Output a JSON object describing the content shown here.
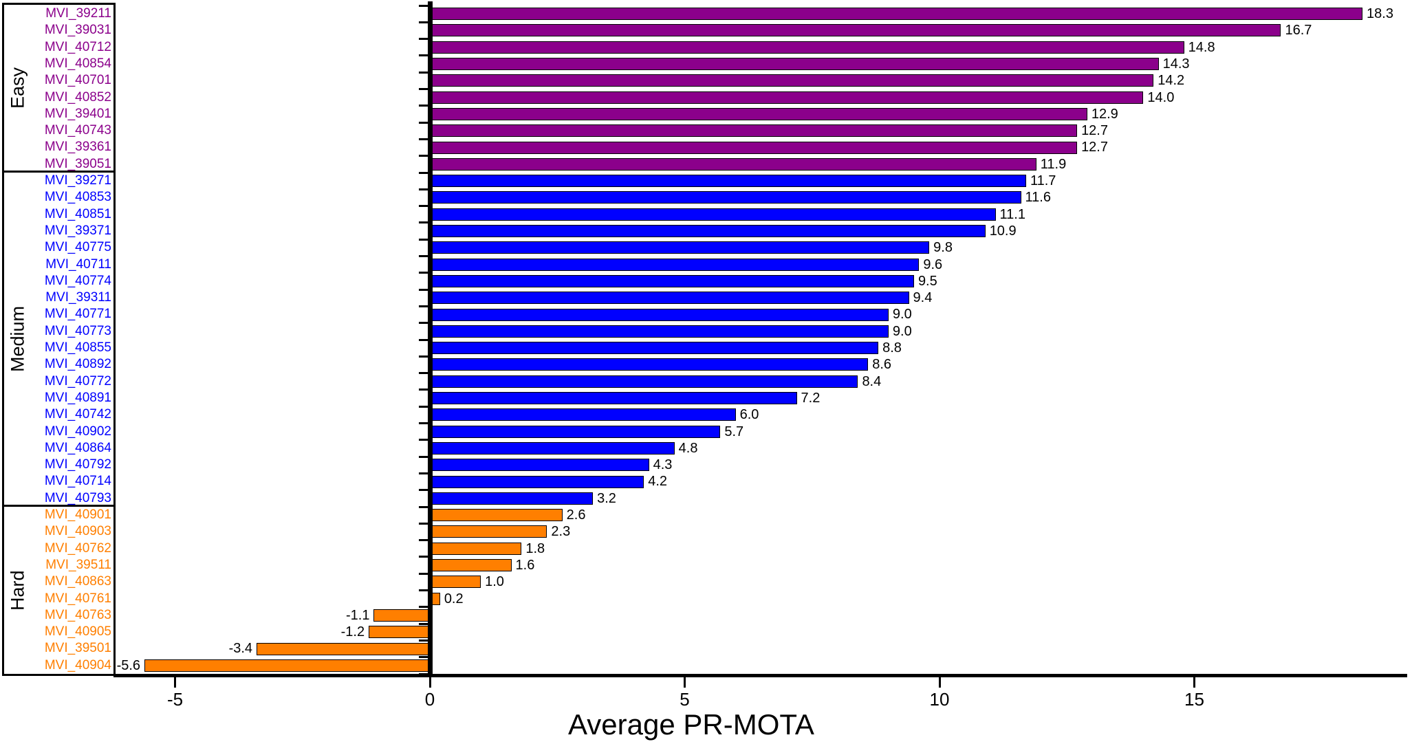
{
  "figure": {
    "background": "#ffffff"
  },
  "chart_data": {
    "type": "bar",
    "orientation": "horizontal",
    "title": "",
    "xlabel": "Average PR-MOTA",
    "ylabel": "",
    "xlim": [
      -6.2,
      19.2
    ],
    "x_ticks": [
      "-5",
      "0",
      "5",
      "10",
      "15"
    ],
    "x_tick_values": [
      -5,
      0,
      5,
      10,
      15
    ],
    "grid": false,
    "legend": false,
    "bar_edge_color": "#000000",
    "axis_color": "#000000",
    "groups": [
      {
        "label": "Easy",
        "color": "#8B008B",
        "items": [
          {
            "name": "MVI_39211",
            "value": 18.3,
            "label": "18.3"
          },
          {
            "name": "MVI_39031",
            "value": 16.7,
            "label": "16.7"
          },
          {
            "name": "MVI_40712",
            "value": 14.8,
            "label": "14.8"
          },
          {
            "name": "MVI_40854",
            "value": 14.3,
            "label": "14.3"
          },
          {
            "name": "MVI_40701",
            "value": 14.2,
            "label": "14.2"
          },
          {
            "name": "MVI_40852",
            "value": 14.0,
            "label": "14.0"
          },
          {
            "name": "MVI_39401",
            "value": 12.9,
            "label": "12.9"
          },
          {
            "name": "MVI_40743",
            "value": 12.7,
            "label": "12.7"
          },
          {
            "name": "MVI_39361",
            "value": 12.7,
            "label": "12.7"
          },
          {
            "name": "MVI_39051",
            "value": 11.9,
            "label": "11.9"
          }
        ]
      },
      {
        "label": "Medium",
        "color": "#0000FF",
        "items": [
          {
            "name": "MVI_39271",
            "value": 11.7,
            "label": "11.7"
          },
          {
            "name": "MVI_40853",
            "value": 11.6,
            "label": "11.6"
          },
          {
            "name": "MVI_40851",
            "value": 11.1,
            "label": "11.1"
          },
          {
            "name": "MVI_39371",
            "value": 10.9,
            "label": "10.9"
          },
          {
            "name": "MVI_40775",
            "value": 9.8,
            "label": "9.8"
          },
          {
            "name": "MVI_40711",
            "value": 9.6,
            "label": "9.6"
          },
          {
            "name": "MVI_40774",
            "value": 9.5,
            "label": "9.5"
          },
          {
            "name": "MVI_39311",
            "value": 9.4,
            "label": "9.4"
          },
          {
            "name": "MVI_40771",
            "value": 9.0,
            "label": "9.0"
          },
          {
            "name": "MVI_40773",
            "value": 9.0,
            "label": "9.0"
          },
          {
            "name": "MVI_40855",
            "value": 8.8,
            "label": "8.8"
          },
          {
            "name": "MVI_40892",
            "value": 8.6,
            "label": "8.6"
          },
          {
            "name": "MVI_40772",
            "value": 8.4,
            "label": "8.4"
          },
          {
            "name": "MVI_40891",
            "value": 7.2,
            "label": "7.2"
          },
          {
            "name": "MVI_40742",
            "value": 6.0,
            "label": "6.0"
          },
          {
            "name": "MVI_40902",
            "value": 5.7,
            "label": "5.7"
          },
          {
            "name": "MVI_40864",
            "value": 4.8,
            "label": "4.8"
          },
          {
            "name": "MVI_40792",
            "value": 4.3,
            "label": "4.3"
          },
          {
            "name": "MVI_40714",
            "value": 4.2,
            "label": "4.2"
          },
          {
            "name": "MVI_40793",
            "value": 3.2,
            "label": "3.2"
          }
        ]
      },
      {
        "label": "Hard",
        "color": "#FF7F00",
        "items": [
          {
            "name": "MVI_40901",
            "value": 2.6,
            "label": "2.6"
          },
          {
            "name": "MVI_40903",
            "value": 2.3,
            "label": "2.3"
          },
          {
            "name": "MVI_40762",
            "value": 1.8,
            "label": "1.8"
          },
          {
            "name": "MVI_39511",
            "value": 1.6,
            "label": "1.6"
          },
          {
            "name": "MVI_40863",
            "value": 1.0,
            "label": "1.0"
          },
          {
            "name": "MVI_40761",
            "value": 0.2,
            "label": "0.2"
          },
          {
            "name": "MVI_40763",
            "value": -1.1,
            "label": "-1.1"
          },
          {
            "name": "MVI_40905",
            "value": -1.2,
            "label": "-1.2"
          },
          {
            "name": "MVI_39501",
            "value": -3.4,
            "label": "-3.4"
          },
          {
            "name": "MVI_40904",
            "value": -5.6,
            "label": "-5.6"
          }
        ]
      }
    ]
  }
}
